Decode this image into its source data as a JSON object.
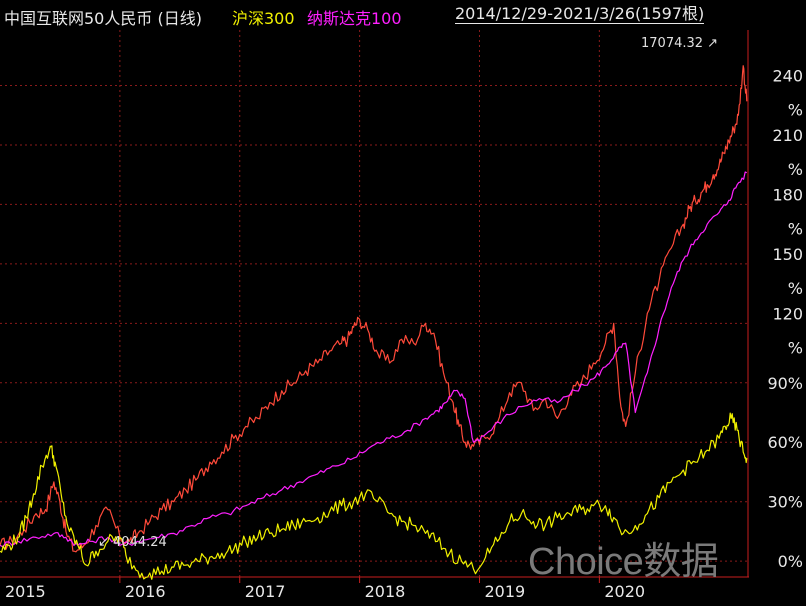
{
  "header": {
    "title": "中国互联网50人民币 (日线)",
    "series1_label": "沪深300",
    "series2_label": "纳斯达克100",
    "date_range": "2014/12/29-2021/3/26(1597根)"
  },
  "watermark": "Choice数据",
  "colors": {
    "background": "#000000",
    "main": "#ff4a3a",
    "hs300": "#f0f000",
    "nasdaq": "#ff20ff",
    "grid": "#8a1a1a",
    "axis_text": "#e8e8e8"
  },
  "chart_data": {
    "type": "line",
    "x_label_years": [
      "2015",
      "2016",
      "2017",
      "2018",
      "2019",
      "2020"
    ],
    "y_ticks": [
      {
        "value": 0,
        "label": "0%"
      },
      {
        "value": 30,
        "label": "30%"
      },
      {
        "value": 60,
        "label": "60%"
      },
      {
        "value": 90,
        "label": "90%"
      },
      {
        "value": 120,
        "label": "120%"
      },
      {
        "value": 150,
        "label": "150%"
      },
      {
        "value": 180,
        "label": "180%"
      },
      {
        "value": 210,
        "label": "210%"
      },
      {
        "value": 240,
        "label": "240%"
      }
    ],
    "ylim": [
      -8,
      268
    ],
    "xlim": [
      2015.0,
      2021.24
    ],
    "annotations": {
      "max_label": "17074.32",
      "min_label": "4044.24"
    },
    "series": [
      {
        "name": "中国互联网50人民币",
        "color": "#ff4a3a",
        "x": [
          2015.0,
          2015.1,
          2015.2,
          2015.3,
          2015.38,
          2015.45,
          2015.5,
          2015.55,
          2015.62,
          2015.7,
          2015.8,
          2015.9,
          2016.0,
          2016.08,
          2016.15,
          2016.25,
          2016.35,
          2016.45,
          2016.55,
          2016.65,
          2016.75,
          2016.85,
          2016.95,
          2017.05,
          2017.15,
          2017.25,
          2017.35,
          2017.45,
          2017.55,
          2017.65,
          2017.75,
          2017.85,
          2017.9,
          2017.95,
          2018.0,
          2018.08,
          2018.15,
          2018.25,
          2018.35,
          2018.45,
          2018.55,
          2018.62,
          2018.7,
          2018.78,
          2018.83,
          2018.88,
          2018.95,
          2019.05,
          2019.15,
          2019.25,
          2019.35,
          2019.45,
          2019.55,
          2019.65,
          2019.75,
          2019.85,
          2019.95,
          2020.05,
          2020.12,
          2020.18,
          2020.22,
          2020.3,
          2020.4,
          2020.5,
          2020.6,
          2020.7,
          2020.75,
          2020.8,
          2020.85,
          2020.9,
          2020.95,
          2021.0,
          2021.04,
          2021.08,
          2021.12,
          2021.16,
          2021.2,
          2021.23
        ],
        "y": [
          8,
          10,
          16,
          24,
          26,
          40,
          30,
          15,
          5,
          8,
          18,
          26,
          12,
          10,
          14,
          20,
          26,
          30,
          36,
          42,
          50,
          55,
          62,
          68,
          72,
          80,
          86,
          90,
          96,
          100,
          106,
          110,
          112,
          118,
          122,
          115,
          105,
          100,
          112,
          110,
          120,
          115,
          95,
          80,
          68,
          60,
          58,
          62,
          70,
          85,
          90,
          76,
          82,
          72,
          84,
          90,
          100,
          110,
          120,
          78,
          68,
          95,
          125,
          142,
          158,
          170,
          178,
          182,
          186,
          190,
          195,
          200,
          206,
          212,
          218,
          225,
          250,
          232
        ]
      },
      {
        "name": "纳斯达克100",
        "color": "#ff20ff",
        "x": [
          2015.0,
          2015.15,
          2015.3,
          2015.45,
          2015.55,
          2015.65,
          2015.75,
          2015.9,
          2016.0,
          2016.15,
          2016.3,
          2016.45,
          2016.6,
          2016.75,
          2016.9,
          2017.05,
          2017.2,
          2017.35,
          2017.5,
          2017.65,
          2017.8,
          2017.95,
          2018.1,
          2018.25,
          2018.4,
          2018.55,
          2018.65,
          2018.72,
          2018.8,
          2018.88,
          2018.95,
          2019.05,
          2019.2,
          2019.35,
          2019.5,
          2019.65,
          2019.8,
          2019.95,
          2020.05,
          2020.15,
          2020.22,
          2020.3,
          2020.4,
          2020.5,
          2020.6,
          2020.7,
          2020.8,
          2020.9,
          2021.0,
          2021.08,
          2021.15,
          2021.23
        ],
        "y": [
          8,
          10,
          12,
          14,
          12,
          8,
          10,
          12,
          8,
          10,
          12,
          14,
          18,
          22,
          24,
          28,
          32,
          36,
          40,
          44,
          48,
          52,
          58,
          62,
          66,
          72,
          76,
          80,
          86,
          82,
          60,
          64,
          72,
          78,
          82,
          80,
          86,
          92,
          98,
          106,
          110,
          75,
          95,
          118,
          138,
          152,
          162,
          170,
          176,
          182,
          190,
          196
        ]
      },
      {
        "name": "沪深300",
        "color": "#f0f000",
        "x": [
          2015.0,
          2015.08,
          2015.15,
          2015.22,
          2015.28,
          2015.35,
          2015.42,
          2015.46,
          2015.52,
          2015.58,
          2015.65,
          2015.72,
          2015.8,
          2015.9,
          2016.0,
          2016.05,
          2016.15,
          2016.25,
          2016.35,
          2016.45,
          2016.55,
          2016.65,
          2016.75,
          2016.85,
          2016.95,
          2017.05,
          2017.15,
          2017.25,
          2017.35,
          2017.45,
          2017.55,
          2017.65,
          2017.75,
          2017.85,
          2017.95,
          2018.05,
          2018.15,
          2018.25,
          2018.35,
          2018.45,
          2018.55,
          2018.65,
          2018.75,
          2018.85,
          2018.95,
          2019.05,
          2019.15,
          2019.25,
          2019.35,
          2019.45,
          2019.55,
          2019.65,
          2019.75,
          2019.85,
          2019.95,
          2020.05,
          2020.12,
          2020.2,
          2020.3,
          2020.4,
          2020.5,
          2020.6,
          2020.7,
          2020.8,
          2020.9,
          2021.0,
          2021.05,
          2021.1,
          2021.15,
          2021.2,
          2021.23
        ],
        "y": [
          5,
          8,
          12,
          22,
          34,
          48,
          58,
          50,
          30,
          15,
          8,
          -2,
          5,
          10,
          12,
          3,
          -5,
          -6,
          -5,
          -3,
          -2,
          0,
          2,
          4,
          6,
          10,
          12,
          14,
          16,
          18,
          20,
          22,
          25,
          28,
          30,
          34,
          30,
          24,
          20,
          18,
          14,
          10,
          4,
          0,
          -4,
          2,
          10,
          20,
          24,
          20,
          18,
          22,
          24,
          26,
          28,
          28,
          22,
          14,
          18,
          24,
          32,
          40,
          46,
          50,
          56,
          62,
          68,
          72,
          66,
          55,
          52
        ]
      }
    ]
  }
}
